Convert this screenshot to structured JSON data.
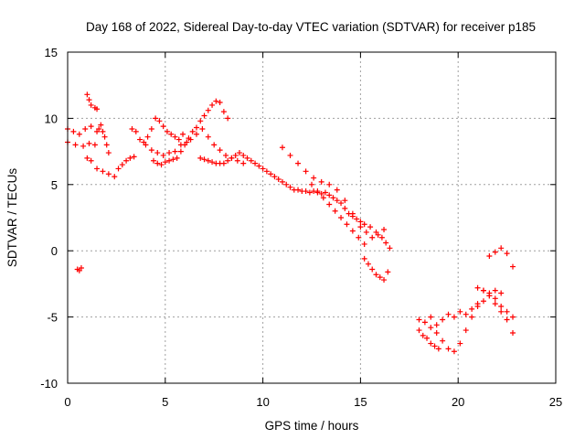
{
  "chart_data": {
    "type": "scatter",
    "title": "Day 168 of 2022, Sidereal Day-to-day VTEC variation (SDTVAR) for receiver p185",
    "xlabel": "GPS time / hours",
    "ylabel": "SDTVAR / TECUs",
    "xlim": [
      0,
      25
    ],
    "ylim": [
      -10,
      15
    ],
    "xticks": [
      "0",
      "5",
      "10",
      "15",
      "20",
      "25"
    ],
    "yticks": [
      "-10",
      "-5",
      "0",
      "5",
      "10",
      "15"
    ],
    "grid": true,
    "marker": "plus",
    "color": "#ff0000",
    "series": [
      {
        "name": "SDTVAR",
        "x": [
          0.0,
          0.3,
          0.6,
          0.9,
          1.2,
          1.5,
          0.0,
          0.4,
          0.8,
          1.1,
          1.4,
          0.5,
          0.6,
          0.7,
          1.0,
          1.1,
          1.2,
          1.4,
          1.5,
          1.0,
          1.2,
          1.5,
          1.8,
          2.1,
          2.4,
          1.6,
          1.7,
          1.8,
          1.9,
          2.0,
          2.1,
          2.6,
          2.8,
          3.0,
          3.2,
          3.4,
          3.3,
          3.5,
          3.7,
          3.9,
          4.1,
          4.3,
          4.5,
          4.7,
          4.9,
          5.1,
          5.3,
          5.5,
          5.7,
          5.9,
          4.0,
          4.3,
          4.6,
          4.9,
          5.2,
          5.5,
          5.8,
          6.1,
          4.4,
          4.6,
          4.8,
          5.0,
          5.2,
          5.4,
          5.6,
          5.8,
          6.0,
          6.2,
          6.4,
          6.6,
          6.8,
          7.0,
          7.2,
          7.4,
          7.6,
          7.8,
          8.0,
          8.2,
          6.3,
          6.6,
          6.9,
          7.2,
          7.5,
          7.8,
          8.1,
          8.4,
          8.7,
          9.0,
          6.8,
          7.0,
          7.2,
          7.4,
          7.6,
          7.8,
          8.0,
          8.2,
          8.4,
          8.6,
          8.8,
          9.0,
          9.2,
          9.4,
          9.6,
          9.8,
          10.0,
          10.2,
          10.4,
          10.6,
          10.8,
          11.0,
          11.2,
          11.4,
          11.6,
          11.8,
          12.0,
          12.2,
          12.4,
          12.6,
          12.8,
          13.0,
          13.2,
          13.4,
          13.6,
          13.8,
          14.0,
          14.2,
          14.4,
          14.6,
          14.8,
          15.0,
          15.2,
          12.5,
          12.8,
          13.1,
          13.4,
          13.7,
          14.0,
          14.3,
          14.6,
          14.9,
          15.2,
          11.0,
          11.4,
          11.8,
          12.2,
          12.6,
          13.0,
          13.4,
          13.8,
          14.2,
          14.6,
          15.0,
          15.3,
          15.6,
          15.9,
          16.2,
          15.2,
          15.4,
          15.6,
          15.8,
          16.0,
          16.2,
          16.4,
          15.5,
          15.8,
          16.1,
          16.3,
          16.5,
          18.0,
          18.3,
          18.6,
          18.9,
          19.2,
          19.5,
          19.8,
          20.1,
          20.4,
          20.7,
          21.0,
          21.3,
          21.6,
          21.9,
          22.2,
          18.0,
          18.2,
          18.4,
          18.6,
          18.8,
          19.0,
          18.6,
          18.9,
          19.2,
          19.5,
          19.8,
          20.1,
          20.4,
          20.7,
          21.0,
          21.3,
          21.6,
          21.9,
          22.2,
          22.5,
          22.8,
          21.6,
          21.9,
          22.2,
          22.5,
          22.8,
          21.0,
          21.3,
          21.6,
          21.9,
          22.2,
          22.5,
          22.8
        ],
        "y": [
          9.2,
          9.0,
          8.8,
          9.2,
          9.4,
          9.0,
          8.2,
          8.0,
          7.9,
          8.1,
          8.0,
          -1.4,
          -1.5,
          -1.3,
          11.8,
          11.4,
          11.0,
          10.8,
          10.7,
          7.0,
          6.8,
          6.2,
          6.0,
          5.8,
          5.6,
          9.2,
          9.5,
          9.0,
          8.6,
          8.0,
          7.4,
          6.2,
          6.5,
          6.8,
          7.0,
          7.1,
          9.2,
          9.0,
          8.4,
          8.2,
          8.6,
          9.2,
          10.0,
          9.8,
          9.4,
          9.0,
          8.8,
          8.6,
          8.4,
          8.8,
          8.0,
          7.6,
          7.4,
          7.2,
          7.4,
          7.5,
          8.0,
          8.2,
          6.8,
          6.6,
          6.5,
          6.7,
          6.8,
          6.9,
          7.0,
          7.5,
          8.0,
          8.5,
          9.0,
          9.3,
          9.8,
          10.2,
          10.6,
          11.0,
          11.3,
          11.2,
          10.5,
          10.0,
          8.4,
          8.8,
          9.2,
          8.6,
          8.0,
          7.6,
          7.2,
          7.0,
          6.8,
          6.6,
          7.0,
          6.9,
          6.8,
          6.7,
          6.6,
          6.6,
          6.6,
          6.8,
          7.0,
          7.2,
          7.4,
          7.2,
          7.0,
          6.8,
          6.6,
          6.4,
          6.2,
          6.0,
          5.8,
          5.6,
          5.4,
          5.2,
          5.0,
          4.8,
          4.6,
          4.6,
          4.5,
          4.5,
          4.4,
          4.5,
          4.4,
          4.3,
          4.4,
          4.2,
          4.0,
          3.8,
          3.6,
          3.2,
          2.8,
          2.6,
          2.4,
          2.2,
          2.0,
          5.0,
          4.5,
          4.0,
          3.5,
          3.0,
          2.5,
          2.0,
          1.5,
          1.0,
          0.5,
          7.8,
          7.2,
          6.6,
          6.0,
          5.5,
          5.2,
          5.0,
          4.6,
          3.8,
          2.8,
          1.8,
          1.4,
          1.0,
          1.2,
          1.6,
          -0.6,
          -1.0,
          -1.4,
          -1.8,
          -2.0,
          -2.2,
          -1.6,
          1.8,
          1.4,
          1.0,
          0.6,
          0.2,
          -5.2,
          -5.4,
          -5.0,
          -5.6,
          -5.2,
          -4.8,
          -5.0,
          -4.6,
          -4.8,
          -4.4,
          -4.2,
          -3.8,
          -3.4,
          -3.0,
          -3.2,
          -6.0,
          -6.4,
          -6.6,
          -7.0,
          -7.2,
          -7.4,
          -5.8,
          -6.2,
          -6.8,
          -7.4,
          -7.6,
          -7.0,
          -6.0,
          -5.0,
          -4.0,
          -3.0,
          -3.2,
          -3.6,
          -4.2,
          -4.6,
          -5.0,
          -0.4,
          -0.1,
          0.2,
          -0.2,
          -1.2,
          -2.8,
          -3.0,
          -3.4,
          -4.0,
          -4.6,
          -5.2,
          -6.2
        ]
      }
    ]
  }
}
